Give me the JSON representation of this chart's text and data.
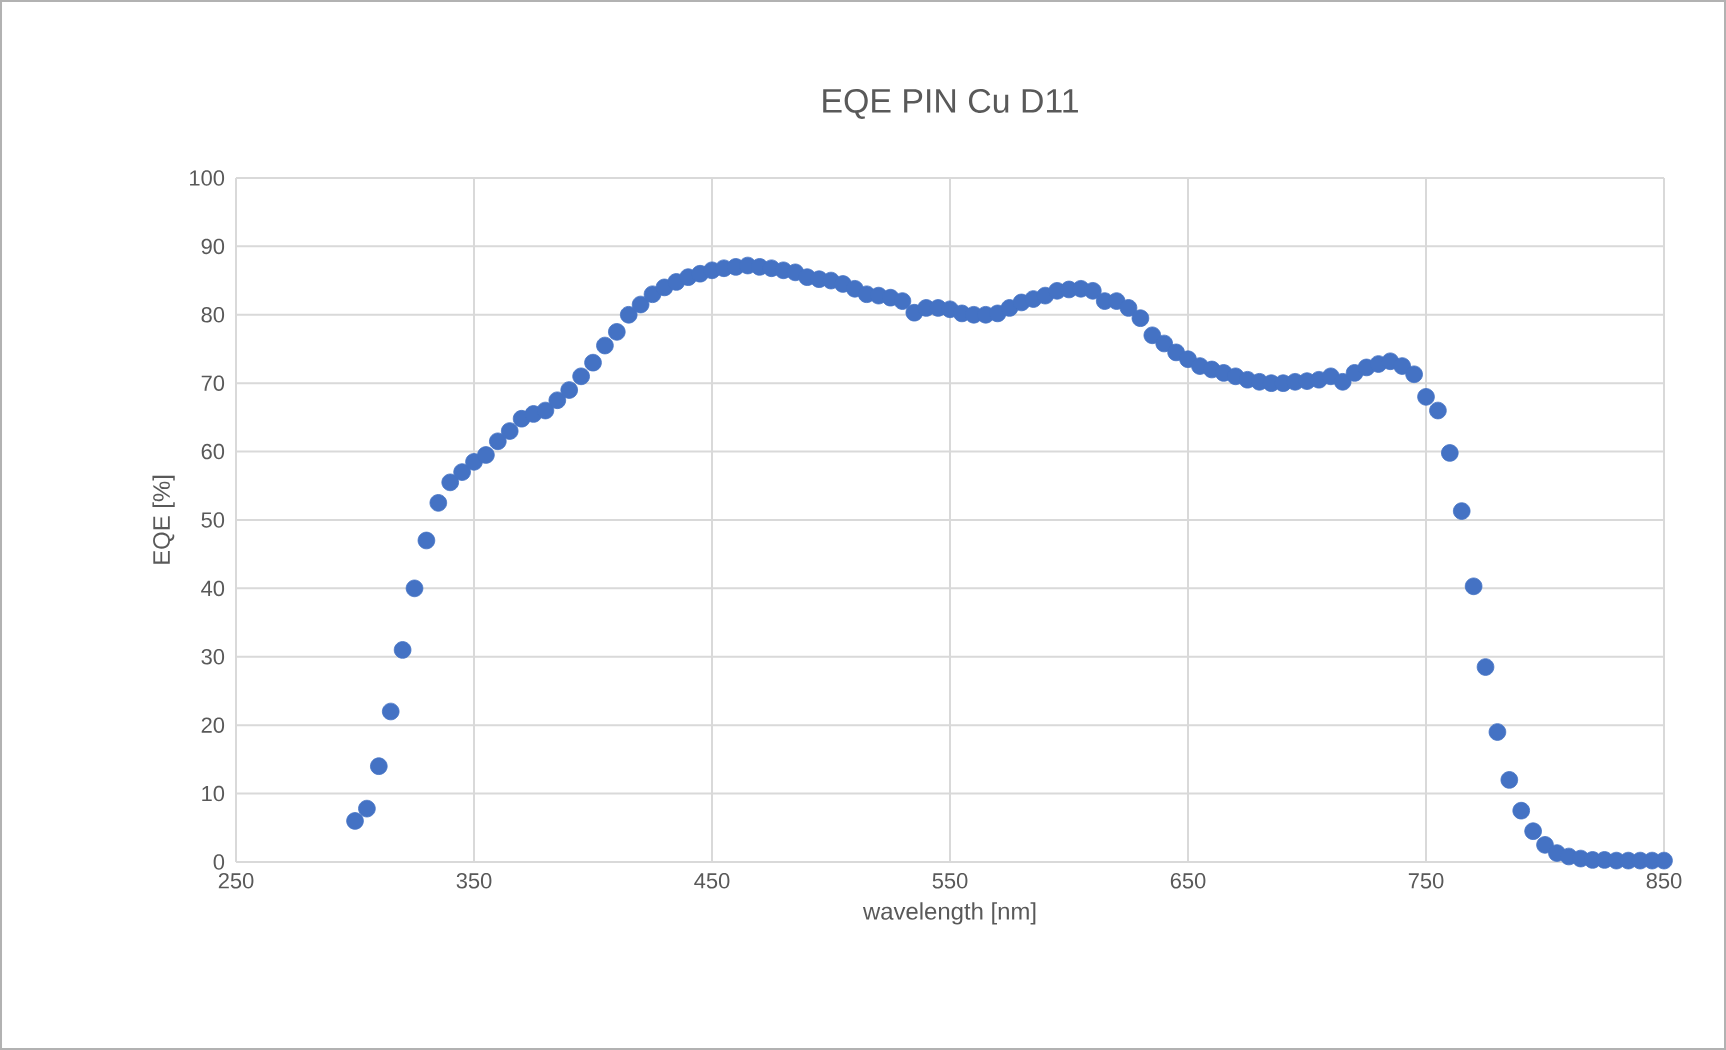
{
  "chart_data": {
    "type": "scatter",
    "title": "EQE PIN Cu D11",
    "xlabel": "wavelength [nm]",
    "ylabel": "EQE [%]",
    "xlim": [
      250,
      850
    ],
    "xticks": [
      250,
      350,
      450,
      550,
      650,
      750,
      850
    ],
    "ylim": [
      0,
      100
    ],
    "yticks": [
      0,
      10,
      20,
      30,
      40,
      50,
      60,
      70,
      80,
      90,
      100
    ],
    "grid": true,
    "marker": "circle",
    "legend": false,
    "series": [
      {
        "color": "#4472c4",
        "x": [
          300,
          305,
          310,
          315,
          320,
          325,
          330,
          335,
          340,
          345,
          350,
          355,
          360,
          365,
          370,
          375,
          380,
          385,
          390,
          395,
          400,
          405,
          410,
          415,
          420,
          425,
          430,
          435,
          440,
          445,
          450,
          455,
          460,
          465,
          470,
          475,
          480,
          485,
          490,
          495,
          500,
          505,
          510,
          515,
          520,
          525,
          530,
          535,
          540,
          545,
          550,
          555,
          560,
          565,
          570,
          575,
          580,
          585,
          590,
          595,
          600,
          605,
          610,
          615,
          620,
          625,
          630,
          635,
          640,
          645,
          650,
          655,
          660,
          665,
          670,
          675,
          680,
          685,
          690,
          695,
          700,
          705,
          710,
          715,
          720,
          725,
          730,
          735,
          740,
          745,
          750,
          755,
          760,
          765,
          770,
          775,
          780,
          785,
          790,
          795,
          800,
          805,
          810,
          815,
          820,
          825,
          830,
          835,
          840,
          845,
          850
        ],
        "values": [
          6,
          7.8,
          14,
          22,
          31,
          40,
          47,
          52.5,
          55.5,
          57,
          58.5,
          59.5,
          61.5,
          63,
          64.8,
          65.5,
          66,
          67.5,
          69,
          71,
          73,
          75.5,
          77.5,
          80,
          81.5,
          83,
          84,
          84.8,
          85.5,
          86,
          86.5,
          86.8,
          87,
          87.2,
          87,
          86.8,
          86.5,
          86.2,
          85.5,
          85.2,
          85,
          84.5,
          83.8,
          83,
          82.8,
          82.5,
          82,
          80.3,
          81,
          81,
          80.8,
          80.2,
          80,
          80,
          80.2,
          81,
          81.8,
          82.3,
          82.8,
          83.5,
          83.7,
          83.8,
          83.5,
          82,
          82,
          81,
          79.5,
          77,
          75.8,
          74.5,
          73.5,
          72.5,
          72,
          71.5,
          71,
          70.5,
          70.2,
          70,
          70,
          70.2,
          70.3,
          70.5,
          71,
          70.2,
          71.5,
          72.3,
          72.8,
          73.2,
          72.5,
          71.3,
          68,
          66,
          59.8,
          51.3,
          40.3,
          28.5,
          19,
          12,
          7.5,
          4.5,
          2.5,
          1.3,
          0.8,
          0.5,
          0.3,
          0.3,
          0.2,
          0.2,
          0.2,
          0.2,
          0.2
        ]
      }
    ]
  }
}
